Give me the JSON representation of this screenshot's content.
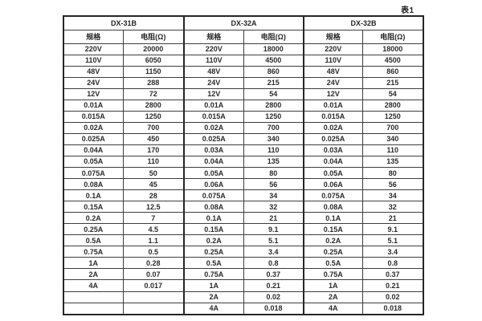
{
  "caption": "表1",
  "table": {
    "groups": [
      {
        "title": "DX-31B",
        "spec_header": "规格",
        "res_header": "电阻(Ω)"
      },
      {
        "title": "DX-32A",
        "spec_header": "规格",
        "res_header": "电阻(Ω)"
      },
      {
        "title": "DX-32B",
        "spec_header": "规格",
        "res_header": "电阻(Ω)"
      }
    ],
    "rows": [
      [
        "220V",
        "20000",
        "220V",
        "18000",
        "220V",
        "18000"
      ],
      [
        "110V",
        "6050",
        "110V",
        "4500",
        "110V",
        "4500"
      ],
      [
        "48V",
        "1150",
        "48V",
        "860",
        "48V",
        "860"
      ],
      [
        "24V",
        "288",
        "24V",
        "215",
        "24V",
        "215"
      ],
      [
        "12V",
        "72",
        "12V",
        "54",
        "12V",
        "54"
      ],
      [
        "0.01A",
        "2800",
        "0.01A",
        "2800",
        "0.01A",
        "2800"
      ],
      [
        "0.015A",
        "1250",
        "0.015A",
        "1250",
        "0.015A",
        "1250"
      ],
      [
        "0.02A",
        "700",
        "0.02A",
        "700",
        "0.02A",
        "700"
      ],
      [
        "0.025A",
        "450",
        "0.025A",
        "340",
        "0.025A",
        "340"
      ],
      [
        "0.04A",
        "170",
        "0.03A",
        "110",
        "0.03A",
        "110"
      ],
      [
        "0.05A",
        "110",
        "0.04A",
        "135",
        "0.04A",
        "135"
      ],
      [
        "0.075A",
        "50",
        "0.05A",
        "80",
        "0.05A",
        "80"
      ],
      [
        "0.08A",
        "45",
        "0.06A",
        "56",
        "0.06A",
        "56"
      ],
      [
        "0.1A",
        "28",
        "0.075A",
        "34",
        "0.075A",
        "34"
      ],
      [
        "0.15A",
        "12.5",
        "0.08A",
        "32",
        "0.08A",
        "32"
      ],
      [
        "0.2A",
        "7",
        "0.1A",
        "21",
        "0.1A",
        "21"
      ],
      [
        "0.25A",
        "4.5",
        "0.15A",
        "9.1",
        "0.15A",
        "9.1"
      ],
      [
        "0.5A",
        "1.1",
        "0.2A",
        "5.1",
        "0.2A",
        "5.1"
      ],
      [
        "0.75A",
        "0.5",
        "0.25A",
        "3.4",
        "0.25A",
        "3.4"
      ],
      [
        "1A",
        "0.28",
        "0.5A",
        "0.8",
        "0.5A",
        "0.8"
      ],
      [
        "2A",
        "0.07",
        "0.75A",
        "0.37",
        "0.75A",
        "0.37"
      ],
      [
        "4A",
        "0.017",
        "1A",
        "0.21",
        "1A",
        "0.21"
      ],
      [
        "",
        "",
        "2A",
        "0.02",
        "2A",
        "0.02"
      ],
      [
        "",
        "",
        "4A",
        "0.018",
        "4A",
        "0.018"
      ]
    ]
  }
}
